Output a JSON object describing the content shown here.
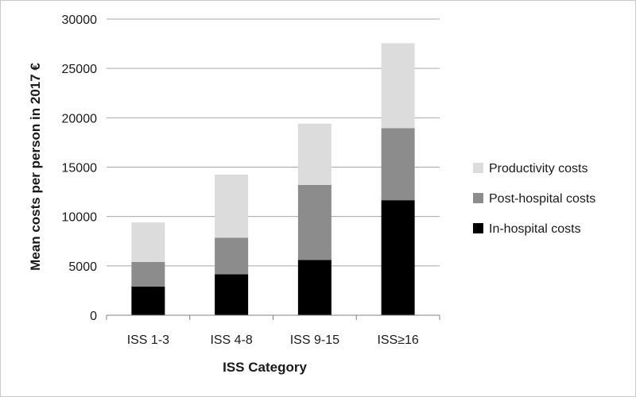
{
  "chart_data": {
    "type": "bar",
    "stacked": true,
    "categories": [
      "ISS 1-3",
      "ISS 4-8",
      "ISS 9-15",
      "ISS≥16"
    ],
    "series": [
      {
        "name": "In-hospital costs",
        "values": [
          2900,
          4150,
          5600,
          11650
        ],
        "color": "#000000"
      },
      {
        "name": "Post-hospital costs",
        "values": [
          2500,
          3700,
          7600,
          7300
        ],
        "color": "#8c8c8c"
      },
      {
        "name": "Productivity costs",
        "values": [
          4000,
          6400,
          6200,
          8600
        ],
        "color": "#dcdcdc"
      }
    ],
    "xlabel": "ISS Category",
    "ylabel": "Mean costs per person in 2017 €",
    "ylim": [
      0,
      30000
    ],
    "yticks": [
      0,
      5000,
      10000,
      15000,
      20000,
      25000,
      30000
    ],
    "grid": true,
    "legend": {
      "position": "right",
      "order": [
        "Productivity costs",
        "Post-hospital costs",
        "In-hospital costs"
      ]
    }
  }
}
